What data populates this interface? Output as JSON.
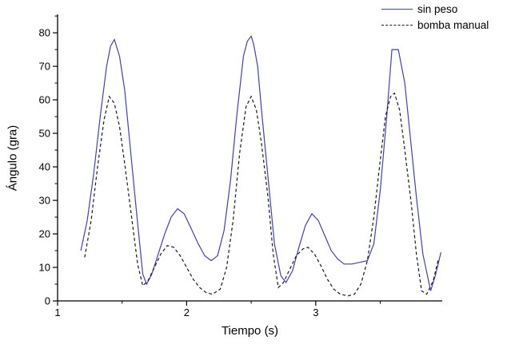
{
  "figure": {
    "background": "#ffffff",
    "axis_color": "#000000"
  },
  "chart_data": {
    "type": "line",
    "title": "",
    "xlabel": "Tiempo (s)",
    "ylabel": "Ángulo (gra)",
    "xlim": [
      1,
      3.98
    ],
    "ylim": [
      0,
      85.5
    ],
    "x_major_ticks": [
      1,
      2,
      3
    ],
    "x_minor_ticks": [
      1.5,
      2.5,
      3.5
    ],
    "y_major_ticks": [
      0,
      10,
      20,
      30,
      40,
      50,
      60,
      70,
      80
    ],
    "y_minor_ticks": [
      5,
      15,
      25,
      35,
      45,
      55,
      65,
      75,
      85
    ],
    "grid": false,
    "legend_position": "top-right",
    "series": [
      {
        "name": "sin peso",
        "color": "#4343a0",
        "style": "solid",
        "points": [
          [
            1.18,
            15
          ],
          [
            1.23,
            24
          ],
          [
            1.28,
            38
          ],
          [
            1.33,
            55
          ],
          [
            1.38,
            70
          ],
          [
            1.41,
            76
          ],
          [
            1.44,
            78
          ],
          [
            1.48,
            73
          ],
          [
            1.52,
            63
          ],
          [
            1.56,
            47
          ],
          [
            1.61,
            27
          ],
          [
            1.66,
            8
          ],
          [
            1.69,
            5
          ],
          [
            1.73,
            8
          ],
          [
            1.78,
            14
          ],
          [
            1.83,
            20
          ],
          [
            1.88,
            25
          ],
          [
            1.93,
            27.5
          ],
          [
            1.98,
            26
          ],
          [
            2.03,
            22
          ],
          [
            2.09,
            17
          ],
          [
            2.14,
            13.5
          ],
          [
            2.19,
            12
          ],
          [
            2.24,
            13.5
          ],
          [
            2.29,
            21
          ],
          [
            2.34,
            36
          ],
          [
            2.39,
            56
          ],
          [
            2.44,
            73
          ],
          [
            2.47,
            77.5
          ],
          [
            2.5,
            79
          ],
          [
            2.52,
            76.5
          ],
          [
            2.55,
            70
          ],
          [
            2.58,
            57
          ],
          [
            2.63,
            37
          ],
          [
            2.68,
            17
          ],
          [
            2.73,
            7.5
          ],
          [
            2.77,
            5.5
          ],
          [
            2.82,
            9
          ],
          [
            2.87,
            16
          ],
          [
            2.92,
            22.5
          ],
          [
            2.97,
            26
          ],
          [
            3.02,
            24
          ],
          [
            3.07,
            19.5
          ],
          [
            3.12,
            15
          ],
          [
            3.17,
            12.5
          ],
          [
            3.22,
            11
          ],
          [
            3.28,
            11
          ],
          [
            3.34,
            11.5
          ],
          [
            3.4,
            12
          ],
          [
            3.45,
            17
          ],
          [
            3.5,
            33
          ],
          [
            3.55,
            55
          ],
          [
            3.59,
            75
          ],
          [
            3.64,
            75
          ],
          [
            3.69,
            65
          ],
          [
            3.73,
            50
          ],
          [
            3.78,
            31
          ],
          [
            3.83,
            14
          ],
          [
            3.89,
            3
          ],
          [
            3.93,
            8
          ],
          [
            3.97,
            14.5
          ]
        ]
      },
      {
        "name": "bomba manual",
        "color": "#1a1a1a",
        "style": "dashed",
        "points": [
          [
            1.21,
            13
          ],
          [
            1.26,
            24
          ],
          [
            1.31,
            40
          ],
          [
            1.36,
            54
          ],
          [
            1.4,
            61
          ],
          [
            1.44,
            59
          ],
          [
            1.48,
            52
          ],
          [
            1.52,
            41
          ],
          [
            1.57,
            26
          ],
          [
            1.62,
            11
          ],
          [
            1.66,
            4.5
          ],
          [
            1.7,
            6
          ],
          [
            1.75,
            10
          ],
          [
            1.8,
            14
          ],
          [
            1.85,
            16.5
          ],
          [
            1.9,
            16
          ],
          [
            1.95,
            13.5
          ],
          [
            2.0,
            10
          ],
          [
            2.05,
            6.5
          ],
          [
            2.1,
            4
          ],
          [
            2.15,
            2.5
          ],
          [
            2.2,
            2
          ],
          [
            2.26,
            3.5
          ],
          [
            2.31,
            10
          ],
          [
            2.36,
            24
          ],
          [
            2.41,
            44
          ],
          [
            2.46,
            58
          ],
          [
            2.5,
            61
          ],
          [
            2.54,
            57
          ],
          [
            2.58,
            47
          ],
          [
            2.63,
            31
          ],
          [
            2.67,
            14
          ],
          [
            2.71,
            4
          ],
          [
            2.75,
            5.5
          ],
          [
            2.8,
            9.5
          ],
          [
            2.85,
            13.5
          ],
          [
            2.9,
            15.5
          ],
          [
            2.94,
            16
          ],
          [
            2.99,
            14
          ],
          [
            3.04,
            10.5
          ],
          [
            3.09,
            6.5
          ],
          [
            3.14,
            3.5
          ],
          [
            3.19,
            2
          ],
          [
            3.25,
            1.5
          ],
          [
            3.3,
            2
          ],
          [
            3.35,
            5
          ],
          [
            3.4,
            12
          ],
          [
            3.45,
            25
          ],
          [
            3.5,
            42
          ],
          [
            3.54,
            55
          ],
          [
            3.58,
            61
          ],
          [
            3.61,
            62
          ],
          [
            3.65,
            57
          ],
          [
            3.69,
            45
          ],
          [
            3.74,
            29
          ],
          [
            3.78,
            14
          ],
          [
            3.82,
            3
          ],
          [
            3.86,
            2
          ],
          [
            3.91,
            6
          ],
          [
            3.95,
            12.5
          ]
        ]
      }
    ]
  }
}
